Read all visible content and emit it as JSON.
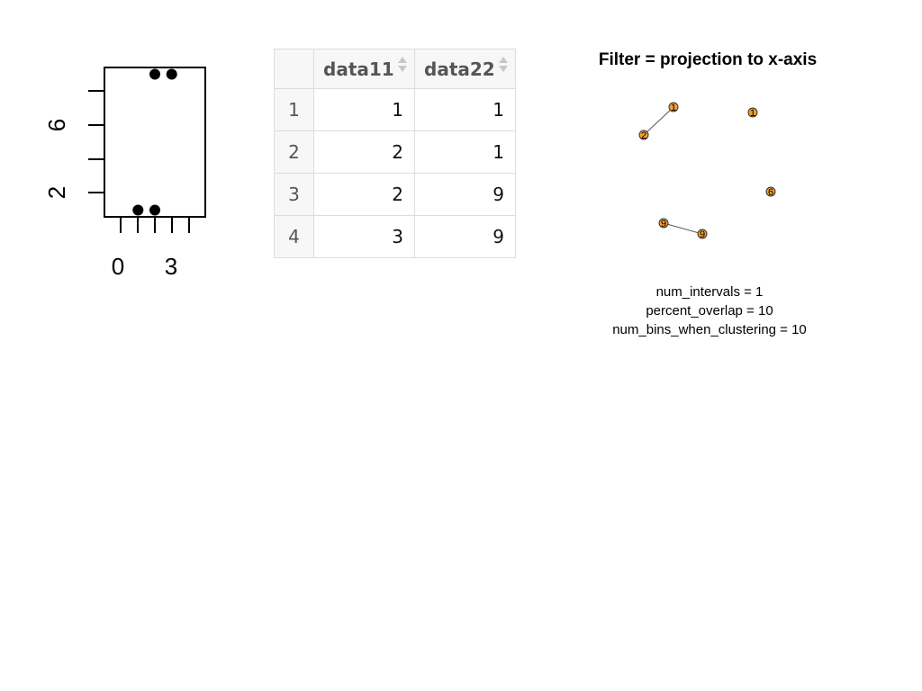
{
  "scatter": {
    "x_ticks": [
      "0",
      "3"
    ],
    "y_ticks": [
      "2",
      "6"
    ],
    "points": [
      {
        "x": 1,
        "y": 1
      },
      {
        "x": 2,
        "y": 1
      },
      {
        "x": 2,
        "y": 9
      },
      {
        "x": 3,
        "y": 9
      }
    ],
    "xlim": [
      -1,
      5
    ],
    "ylim": [
      0.6,
      9.4
    ]
  },
  "table": {
    "columns": [
      "data11",
      "data22"
    ],
    "rows": [
      {
        "index": "1",
        "data11": "1",
        "data22": "1"
      },
      {
        "index": "2",
        "data11": "2",
        "data22": "1"
      },
      {
        "index": "3",
        "data11": "2",
        "data22": "9"
      },
      {
        "index": "4",
        "data11": "3",
        "data22": "9"
      }
    ]
  },
  "graph": {
    "title": "Filter = projection to x-axis",
    "node_color": "#f0a030",
    "edge_color": "#555555",
    "nodes": [
      {
        "label": "1"
      },
      {
        "label": "2"
      },
      {
        "label": "1"
      },
      {
        "label": "6"
      },
      {
        "label": "9"
      },
      {
        "label": "9"
      }
    ],
    "params": [
      "num_intervals =  1",
      "percent_overlap =  10",
      "num_bins_when_clustering = 10"
    ]
  }
}
